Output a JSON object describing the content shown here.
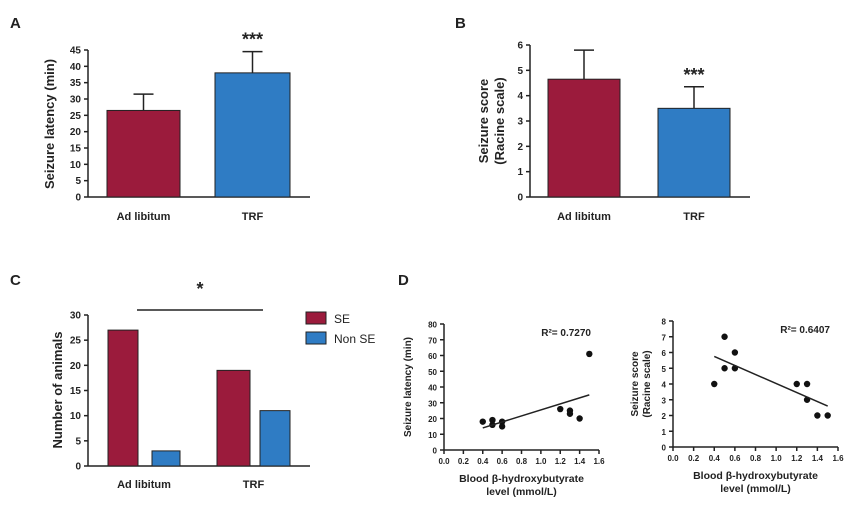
{
  "colors": {
    "ad_libitum": "#9b1b3c",
    "trf": "#2f7cc4",
    "SE": "#9b1b3c",
    "Non SE": "#2f7cc4"
  },
  "chart_data": [
    {
      "panel": "A",
      "type": "bar",
      "categories": [
        "Ad libitum",
        "TRF"
      ],
      "values": [
        26.5,
        38
      ],
      "error_upper": [
        31.5,
        44.5
      ],
      "ylabel": "Seizure latency (min)",
      "ylim": [
        0,
        45
      ],
      "yticks": [
        0,
        5,
        10,
        15,
        20,
        25,
        30,
        35,
        40,
        45
      ],
      "annotations": [
        "",
        "***"
      ]
    },
    {
      "panel": "B",
      "type": "bar",
      "categories": [
        "Ad libitum",
        "TRF"
      ],
      "values": [
        4.65,
        3.5
      ],
      "error_upper": [
        5.8,
        4.35
      ],
      "ylabel": "Seizure score (Racine scale)",
      "ylim": [
        0,
        6
      ],
      "yticks": [
        0,
        1,
        2,
        3,
        4,
        5,
        6
      ],
      "annotations": [
        "",
        "***"
      ]
    },
    {
      "panel": "C",
      "type": "bar",
      "categories": [
        "Ad libitum",
        "TRF"
      ],
      "series": [
        {
          "name": "SE",
          "values": [
            27,
            19
          ]
        },
        {
          "name": "Non SE",
          "values": [
            3,
            11
          ]
        }
      ],
      "ylabel": "Number of animals",
      "ylim": [
        0,
        30
      ],
      "yticks": [
        0,
        5,
        10,
        15,
        20,
        25,
        30
      ],
      "legend": "right",
      "significance": "*"
    },
    {
      "panel": "D",
      "type": "scatter",
      "x": [
        0.4,
        0.5,
        0.5,
        0.6,
        0.6,
        1.2,
        1.3,
        1.3,
        1.4,
        1.5
      ],
      "y": [
        18,
        19,
        16,
        18,
        15,
        26,
        25,
        23,
        20,
        61
      ],
      "fit": [
        [
          0.4,
          14
        ],
        [
          1.5,
          35
        ]
      ],
      "r2": "R²= 0.7270",
      "ylabel": "Seizure latency (min)",
      "xlabel": [
        "Blood β-hydroxybutyrate",
        "level (mmol/L)"
      ],
      "xlim": [
        0,
        1.6
      ],
      "ylim": [
        0,
        80
      ],
      "xticks": [
        "0.0",
        "0.2",
        "0.4",
        "0.6",
        "0.8",
        "1.0",
        "1.2",
        "1.4",
        "1.6"
      ],
      "yticks": [
        0,
        10,
        20,
        30,
        40,
        50,
        60,
        70,
        80
      ]
    },
    {
      "panel": "D",
      "type": "scatter",
      "x": [
        0.4,
        0.5,
        0.5,
        0.6,
        0.6,
        1.2,
        1.3,
        1.3,
        1.4,
        1.5
      ],
      "y": [
        4,
        7,
        5,
        6,
        5,
        4,
        4,
        3,
        2,
        2
      ],
      "fit": [
        [
          0.4,
          5.75
        ],
        [
          1.5,
          2.6
        ]
      ],
      "r2": "R²= 0.6407",
      "ylabel": [
        "Seizure score",
        "(Racine scale)"
      ],
      "xlabel": [
        "Blood β-hydroxybutyrate",
        "level (mmol/L)"
      ],
      "xlim": [
        0,
        1.6
      ],
      "ylim": [
        0,
        8
      ],
      "xticks": [
        "0.0",
        "0.2",
        "0.4",
        "0.6",
        "0.8",
        "1.0",
        "1.2",
        "1.4",
        "1.6"
      ],
      "yticks": [
        0,
        1,
        2,
        3,
        4,
        5,
        6,
        7,
        8
      ]
    }
  ],
  "panel_labels": [
    "A",
    "B",
    "C",
    "D"
  ]
}
